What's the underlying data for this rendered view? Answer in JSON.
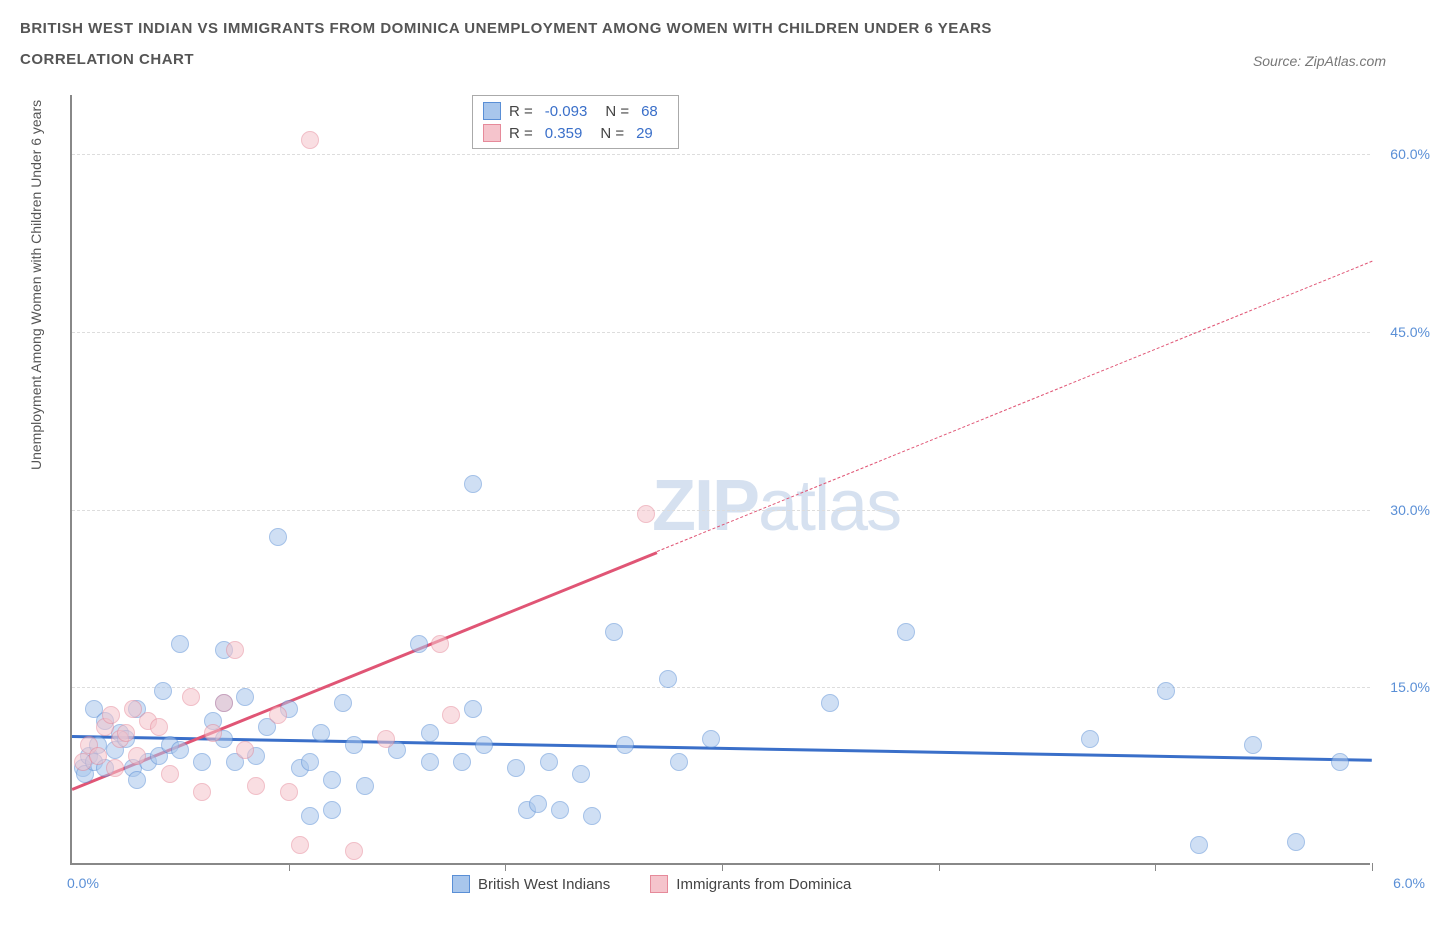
{
  "title_line1": "BRITISH WEST INDIAN VS IMMIGRANTS FROM DOMINICA UNEMPLOYMENT AMONG WOMEN WITH CHILDREN UNDER 6 YEARS",
  "title_line2": "CORRELATION CHART",
  "source_label": "Source: ZipAtlas.com",
  "y_axis_label": "Unemployment Among Women with Children Under 6 years",
  "watermark_bold": "ZIP",
  "watermark_light": "atlas",
  "chart": {
    "type": "scatter",
    "background_color": "#ffffff",
    "grid_color": "#dddddd",
    "axis_color": "#888888",
    "xlim": [
      0.0,
      6.0
    ],
    "ylim": [
      0.0,
      65.0
    ],
    "x_tick_labels": {
      "left": "0.0%",
      "right": "6.0%"
    },
    "x_tick_positions": [
      1.0,
      2.0,
      3.0,
      4.0,
      5.0,
      6.0
    ],
    "y_ticks": [
      {
        "value": 15.0,
        "label": "15.0%"
      },
      {
        "value": 30.0,
        "label": "30.0%"
      },
      {
        "value": 45.0,
        "label": "45.0%"
      },
      {
        "value": 60.0,
        "label": "60.0%"
      }
    ],
    "point_radius": 9,
    "point_opacity": 0.55,
    "point_border_width": 1.5,
    "series": [
      {
        "name": "British West Indians",
        "color_fill": "#a8c6ec",
        "color_border": "#5a8fd6",
        "R": "-0.093",
        "N": "68",
        "trend": {
          "x1": 0.0,
          "y1": 11.0,
          "x2": 6.0,
          "y2": 9.0,
          "dash_from_x": 6.0,
          "color": "#3a6fc9",
          "width": 3
        },
        "points": [
          [
            0.05,
            8.0
          ],
          [
            0.06,
            7.5
          ],
          [
            0.08,
            9.0
          ],
          [
            0.1,
            8.5
          ],
          [
            0.12,
            10.0
          ],
          [
            0.1,
            13.0
          ],
          [
            0.15,
            8.0
          ],
          [
            0.15,
            12.0
          ],
          [
            0.2,
            9.5
          ],
          [
            0.22,
            11.0
          ],
          [
            0.25,
            10.5
          ],
          [
            0.28,
            8.0
          ],
          [
            0.3,
            13.0
          ],
          [
            0.3,
            7.0
          ],
          [
            0.35,
            8.5
          ],
          [
            0.4,
            9.0
          ],
          [
            0.42,
            14.5
          ],
          [
            0.45,
            10.0
          ],
          [
            0.5,
            9.5
          ],
          [
            0.5,
            18.5
          ],
          [
            0.6,
            8.5
          ],
          [
            0.65,
            12.0
          ],
          [
            0.7,
            10.5
          ],
          [
            0.7,
            13.5
          ],
          [
            0.7,
            18.0
          ],
          [
            0.75,
            8.5
          ],
          [
            0.8,
            14.0
          ],
          [
            0.85,
            9.0
          ],
          [
            0.9,
            11.5
          ],
          [
            0.95,
            27.5
          ],
          [
            1.0,
            13.0
          ],
          [
            1.05,
            8.0
          ],
          [
            1.1,
            4.0
          ],
          [
            1.1,
            8.5
          ],
          [
            1.15,
            11.0
          ],
          [
            1.2,
            7.0
          ],
          [
            1.2,
            4.5
          ],
          [
            1.25,
            13.5
          ],
          [
            1.3,
            10.0
          ],
          [
            1.35,
            6.5
          ],
          [
            1.5,
            9.5
          ],
          [
            1.6,
            18.5
          ],
          [
            1.65,
            11.0
          ],
          [
            1.65,
            8.5
          ],
          [
            1.8,
            8.5
          ],
          [
            1.85,
            13.0
          ],
          [
            1.85,
            32.0
          ],
          [
            1.9,
            10.0
          ],
          [
            2.05,
            8.0
          ],
          [
            2.1,
            4.5
          ],
          [
            2.15,
            5.0
          ],
          [
            2.2,
            8.5
          ],
          [
            2.25,
            4.5
          ],
          [
            2.35,
            7.5
          ],
          [
            2.4,
            4.0
          ],
          [
            2.5,
            19.5
          ],
          [
            2.55,
            10.0
          ],
          [
            2.75,
            15.5
          ],
          [
            2.8,
            8.5
          ],
          [
            2.95,
            10.5
          ],
          [
            3.5,
            13.5
          ],
          [
            3.85,
            19.5
          ],
          [
            4.7,
            10.5
          ],
          [
            5.05,
            14.5
          ],
          [
            5.2,
            1.5
          ],
          [
            5.45,
            10.0
          ],
          [
            5.65,
            1.8
          ],
          [
            5.85,
            8.5
          ]
        ]
      },
      {
        "name": "Immigrants from Dominica",
        "color_fill": "#f5c4cc",
        "color_border": "#e68a9a",
        "R": "0.359",
        "N": "29",
        "trend": {
          "x1": 0.0,
          "y1": 6.5,
          "x2": 2.7,
          "y2": 26.5,
          "dash_from_x": 2.7,
          "dash_to_x": 6.0,
          "dash_to_y": 51.0,
          "color": "#e05575",
          "width": 2.5
        },
        "points": [
          [
            0.05,
            8.5
          ],
          [
            0.08,
            10.0
          ],
          [
            0.12,
            9.0
          ],
          [
            0.15,
            11.5
          ],
          [
            0.18,
            12.5
          ],
          [
            0.2,
            8.0
          ],
          [
            0.22,
            10.5
          ],
          [
            0.25,
            11.0
          ],
          [
            0.28,
            13.0
          ],
          [
            0.3,
            9.0
          ],
          [
            0.35,
            12.0
          ],
          [
            0.4,
            11.5
          ],
          [
            0.45,
            7.5
          ],
          [
            0.55,
            14.0
          ],
          [
            0.6,
            6.0
          ],
          [
            0.65,
            11.0
          ],
          [
            0.7,
            13.5
          ],
          [
            0.75,
            18.0
          ],
          [
            0.8,
            9.5
          ],
          [
            0.85,
            6.5
          ],
          [
            0.95,
            12.5
          ],
          [
            1.0,
            6.0
          ],
          [
            1.05,
            1.5
          ],
          [
            1.1,
            61.0
          ],
          [
            1.3,
            1.0
          ],
          [
            1.45,
            10.5
          ],
          [
            1.7,
            18.5
          ],
          [
            1.75,
            12.5
          ],
          [
            2.65,
            29.5
          ]
        ]
      }
    ]
  },
  "stats_legend": {
    "R_label": "R =",
    "N_label": "N ="
  },
  "bottom_legend": {
    "item1": "British West Indians",
    "item2": "Immigrants from Dominica"
  }
}
